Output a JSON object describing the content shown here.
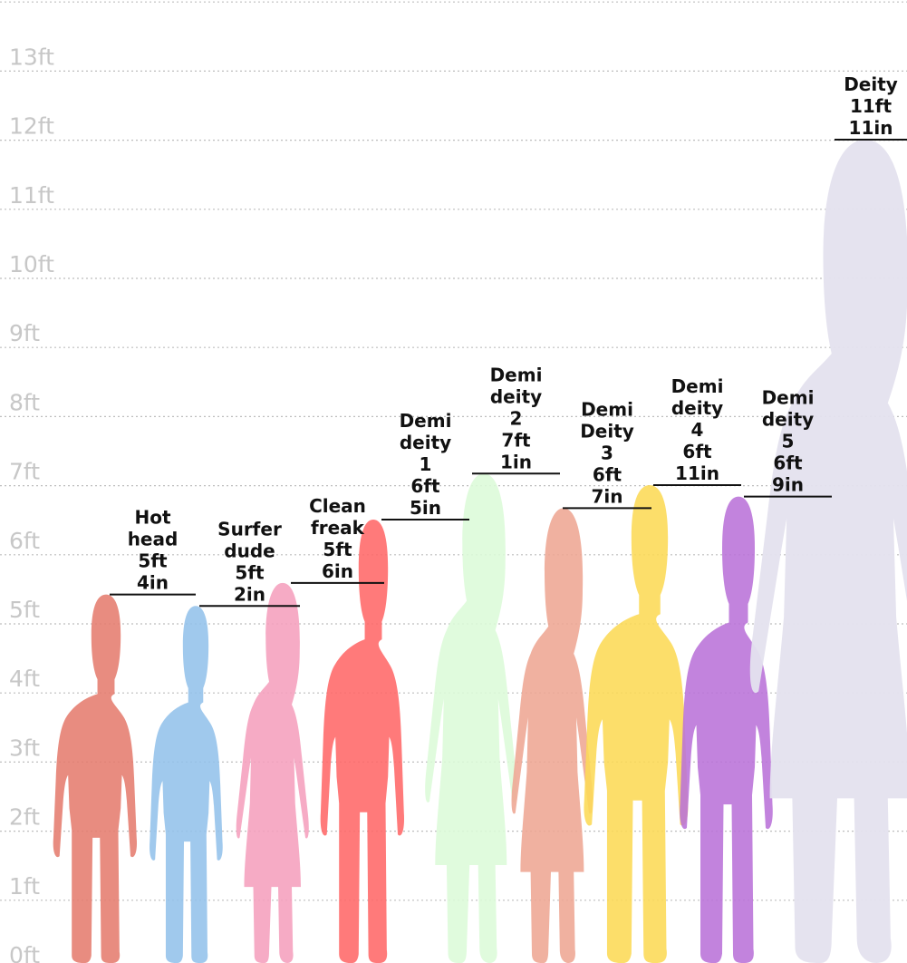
{
  "chart_data": {
    "type": "height-comparison",
    "title": "",
    "unit": "ft",
    "ylim": [
      0,
      13.7
    ],
    "y_ticks": [
      "0ft",
      "1ft",
      "2ft",
      "3ft",
      "4ft",
      "5ft",
      "6ft",
      "7ft",
      "8ft",
      "9ft",
      "10ft",
      "11ft",
      "12ft",
      "13ft"
    ],
    "grid": true,
    "series": [
      {
        "name": "Hot head",
        "feet": 5,
        "inches": 4,
        "label_lines": [
          "Hot",
          "head",
          "5ft",
          "4in"
        ],
        "color": "#e57c6e",
        "shape": "male"
      },
      {
        "name": "Surfer dude",
        "feet": 5,
        "inches": 2,
        "label_lines": [
          "Surfer",
          "dude",
          "5ft",
          "2in"
        ],
        "color": "#93c2ea",
        "shape": "male"
      },
      {
        "name": "Clean freak",
        "feet": 5,
        "inches": 6,
        "label_lines": [
          "Clean",
          "freak",
          "5ft",
          "6in"
        ],
        "color": "#f59fbd",
        "shape": "female"
      },
      {
        "name": "Demi deity 1",
        "feet": 6,
        "inches": 5,
        "label_lines": [
          "Demi",
          "deity",
          "1",
          "6ft",
          "5in"
        ],
        "color": "#ff6868",
        "shape": "male"
      },
      {
        "name": "Demi deity 2",
        "feet": 7,
        "inches": 1,
        "label_lines": [
          "Demi",
          "deity",
          "2",
          "7ft",
          "1in"
        ],
        "color": "#dcfad8",
        "shape": "female"
      },
      {
        "name": "Demi Deity 3",
        "feet": 6,
        "inches": 7,
        "label_lines": [
          "Demi",
          "Deity",
          "3",
          "6ft",
          "7in"
        ],
        "color": "#eea693",
        "shape": "female"
      },
      {
        "name": "Demi deity 4",
        "feet": 6,
        "inches": 11,
        "label_lines": [
          "Demi",
          "deity",
          "4",
          "6ft",
          "11in"
        ],
        "color": "#fcd955",
        "shape": "male"
      },
      {
        "name": "Demi deity 5",
        "feet": 6,
        "inches": 9,
        "label_lines": [
          "Demi",
          "deity",
          "5",
          "6ft",
          "9in"
        ],
        "color": "#ba72d8",
        "shape": "male"
      },
      {
        "name": "Deity",
        "feet": 11,
        "inches": 11,
        "label_lines": [
          "Deity",
          "11ft",
          "11in"
        ],
        "color": "#e4e2ee",
        "shape": "female"
      }
    ]
  }
}
